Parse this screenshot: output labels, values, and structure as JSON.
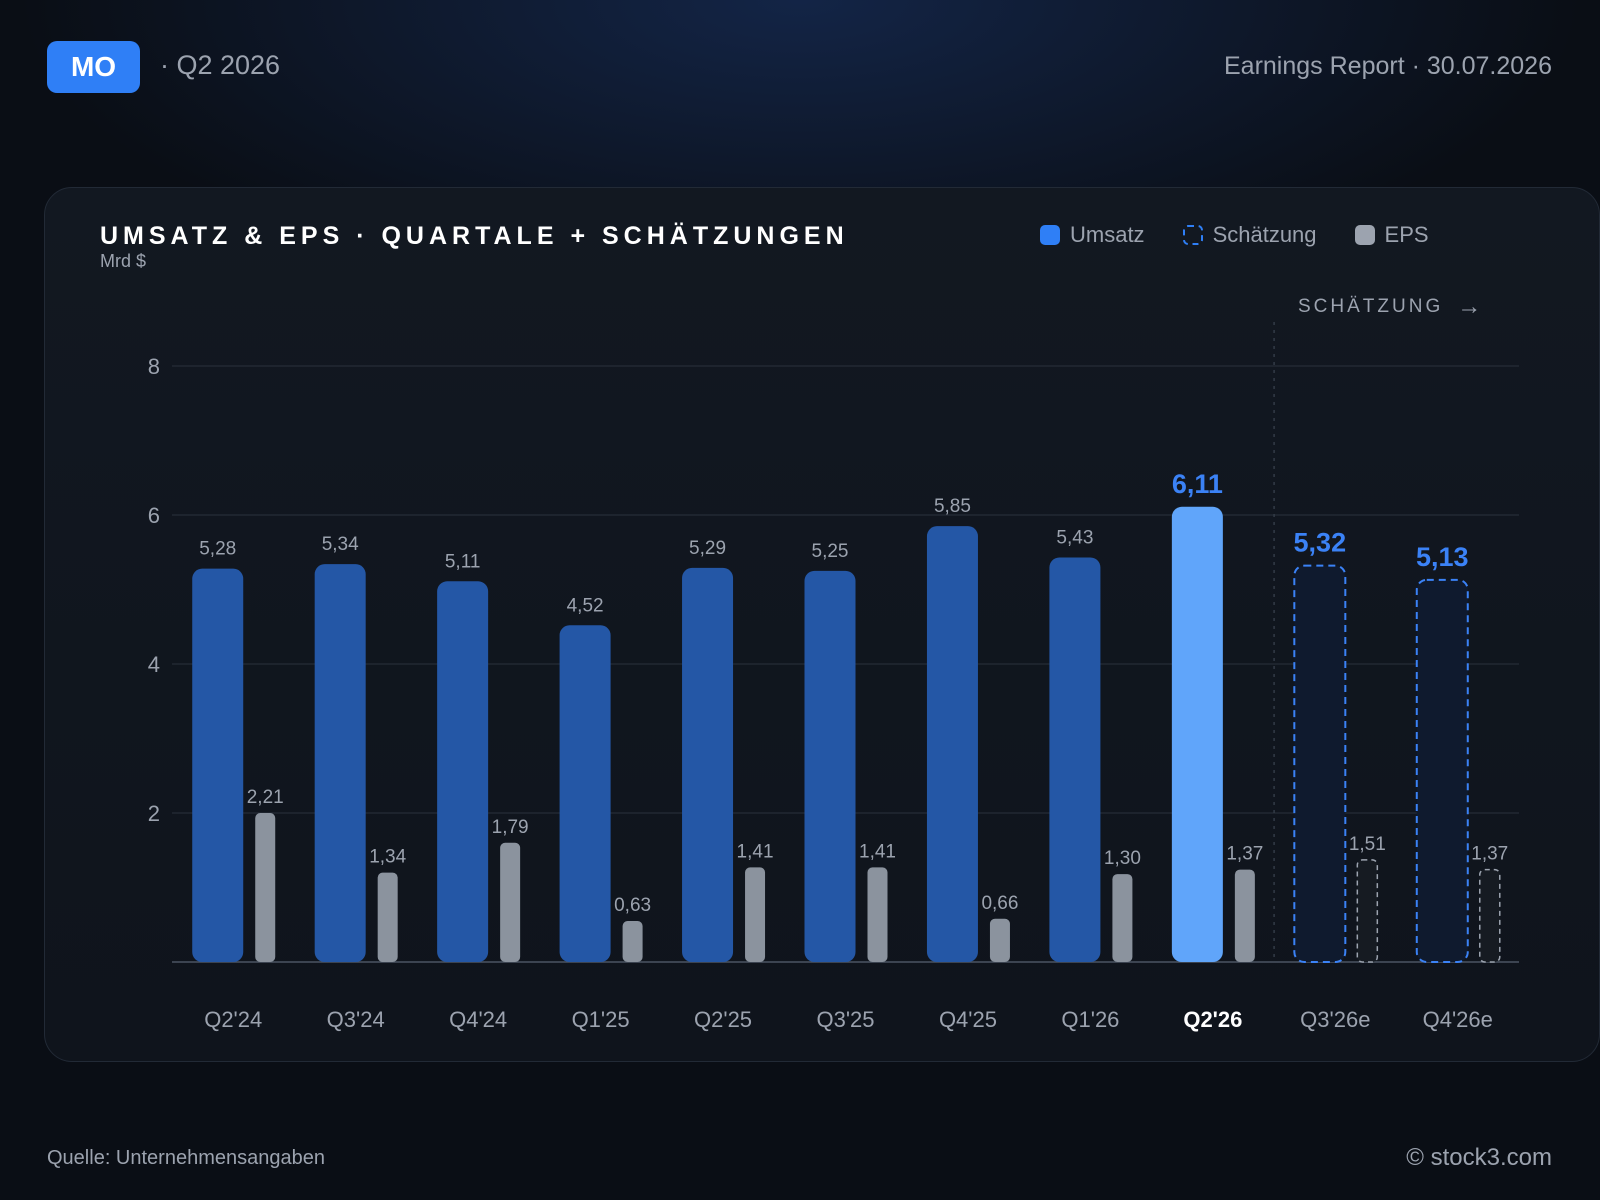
{
  "header": {
    "ticker": "MO",
    "period": "· Q2 2026",
    "report": "Earnings Report · 30.07.2026"
  },
  "legend": {
    "revenue": "Umsatz",
    "estimate": "Schätzung",
    "eps": "EPS"
  },
  "forecast_marker": "SCHÄTZUNG",
  "footer": {
    "source": "Quelle: Unternehmensangaben",
    "credit": "© stock3.com"
  },
  "colors": {
    "revenue": "#2457a6",
    "revenue_current": "#60a5fa",
    "estimate_stroke": "#3b82f6",
    "estimate_label": "#3b82f6",
    "eps": "#8b939e",
    "eps_estimate_stroke": "#9ca3af",
    "axis_label": "#9ca3af"
  },
  "chart_data": {
    "type": "bar",
    "title": "UMSATZ & EPS · QUARTALE + SCHÄTZUNGEN",
    "ylabel": "Mrd $",
    "ylim": [
      0,
      8
    ],
    "yticks": [
      2,
      4,
      6,
      8
    ],
    "categories": [
      "Q2'24",
      "Q3'24",
      "Q4'24",
      "Q1'25",
      "Q2'25",
      "Q3'25",
      "Q4'25",
      "Q1'26",
      "Q2'26",
      "Q3'26e",
      "Q4'26e"
    ],
    "current_category": "Q2'26",
    "estimate_from": "Q3'26e",
    "series": [
      {
        "name": "Umsatz",
        "values": [
          5.28,
          5.34,
          5.11,
          4.52,
          5.29,
          5.25,
          5.85,
          5.43,
          6.11,
          5.32,
          5.13
        ],
        "labels": [
          "5,28",
          "5,34",
          "5,11",
          "4,52",
          "5,29",
          "5,25",
          "5,85",
          "5,43",
          "6,11",
          "5,32",
          "5,13"
        ]
      },
      {
        "name": "EPS",
        "values": [
          2.0,
          1.2,
          1.6,
          0.55,
          1.27,
          1.27,
          0.58,
          1.18,
          1.24,
          1.37,
          1.24
        ],
        "labels": [
          "2,21",
          "1,34",
          "1,79",
          "0,63",
          "1,41",
          "1,41",
          "0,66",
          "1,30",
          "1,37",
          "1,51",
          "1,37"
        ]
      }
    ]
  }
}
